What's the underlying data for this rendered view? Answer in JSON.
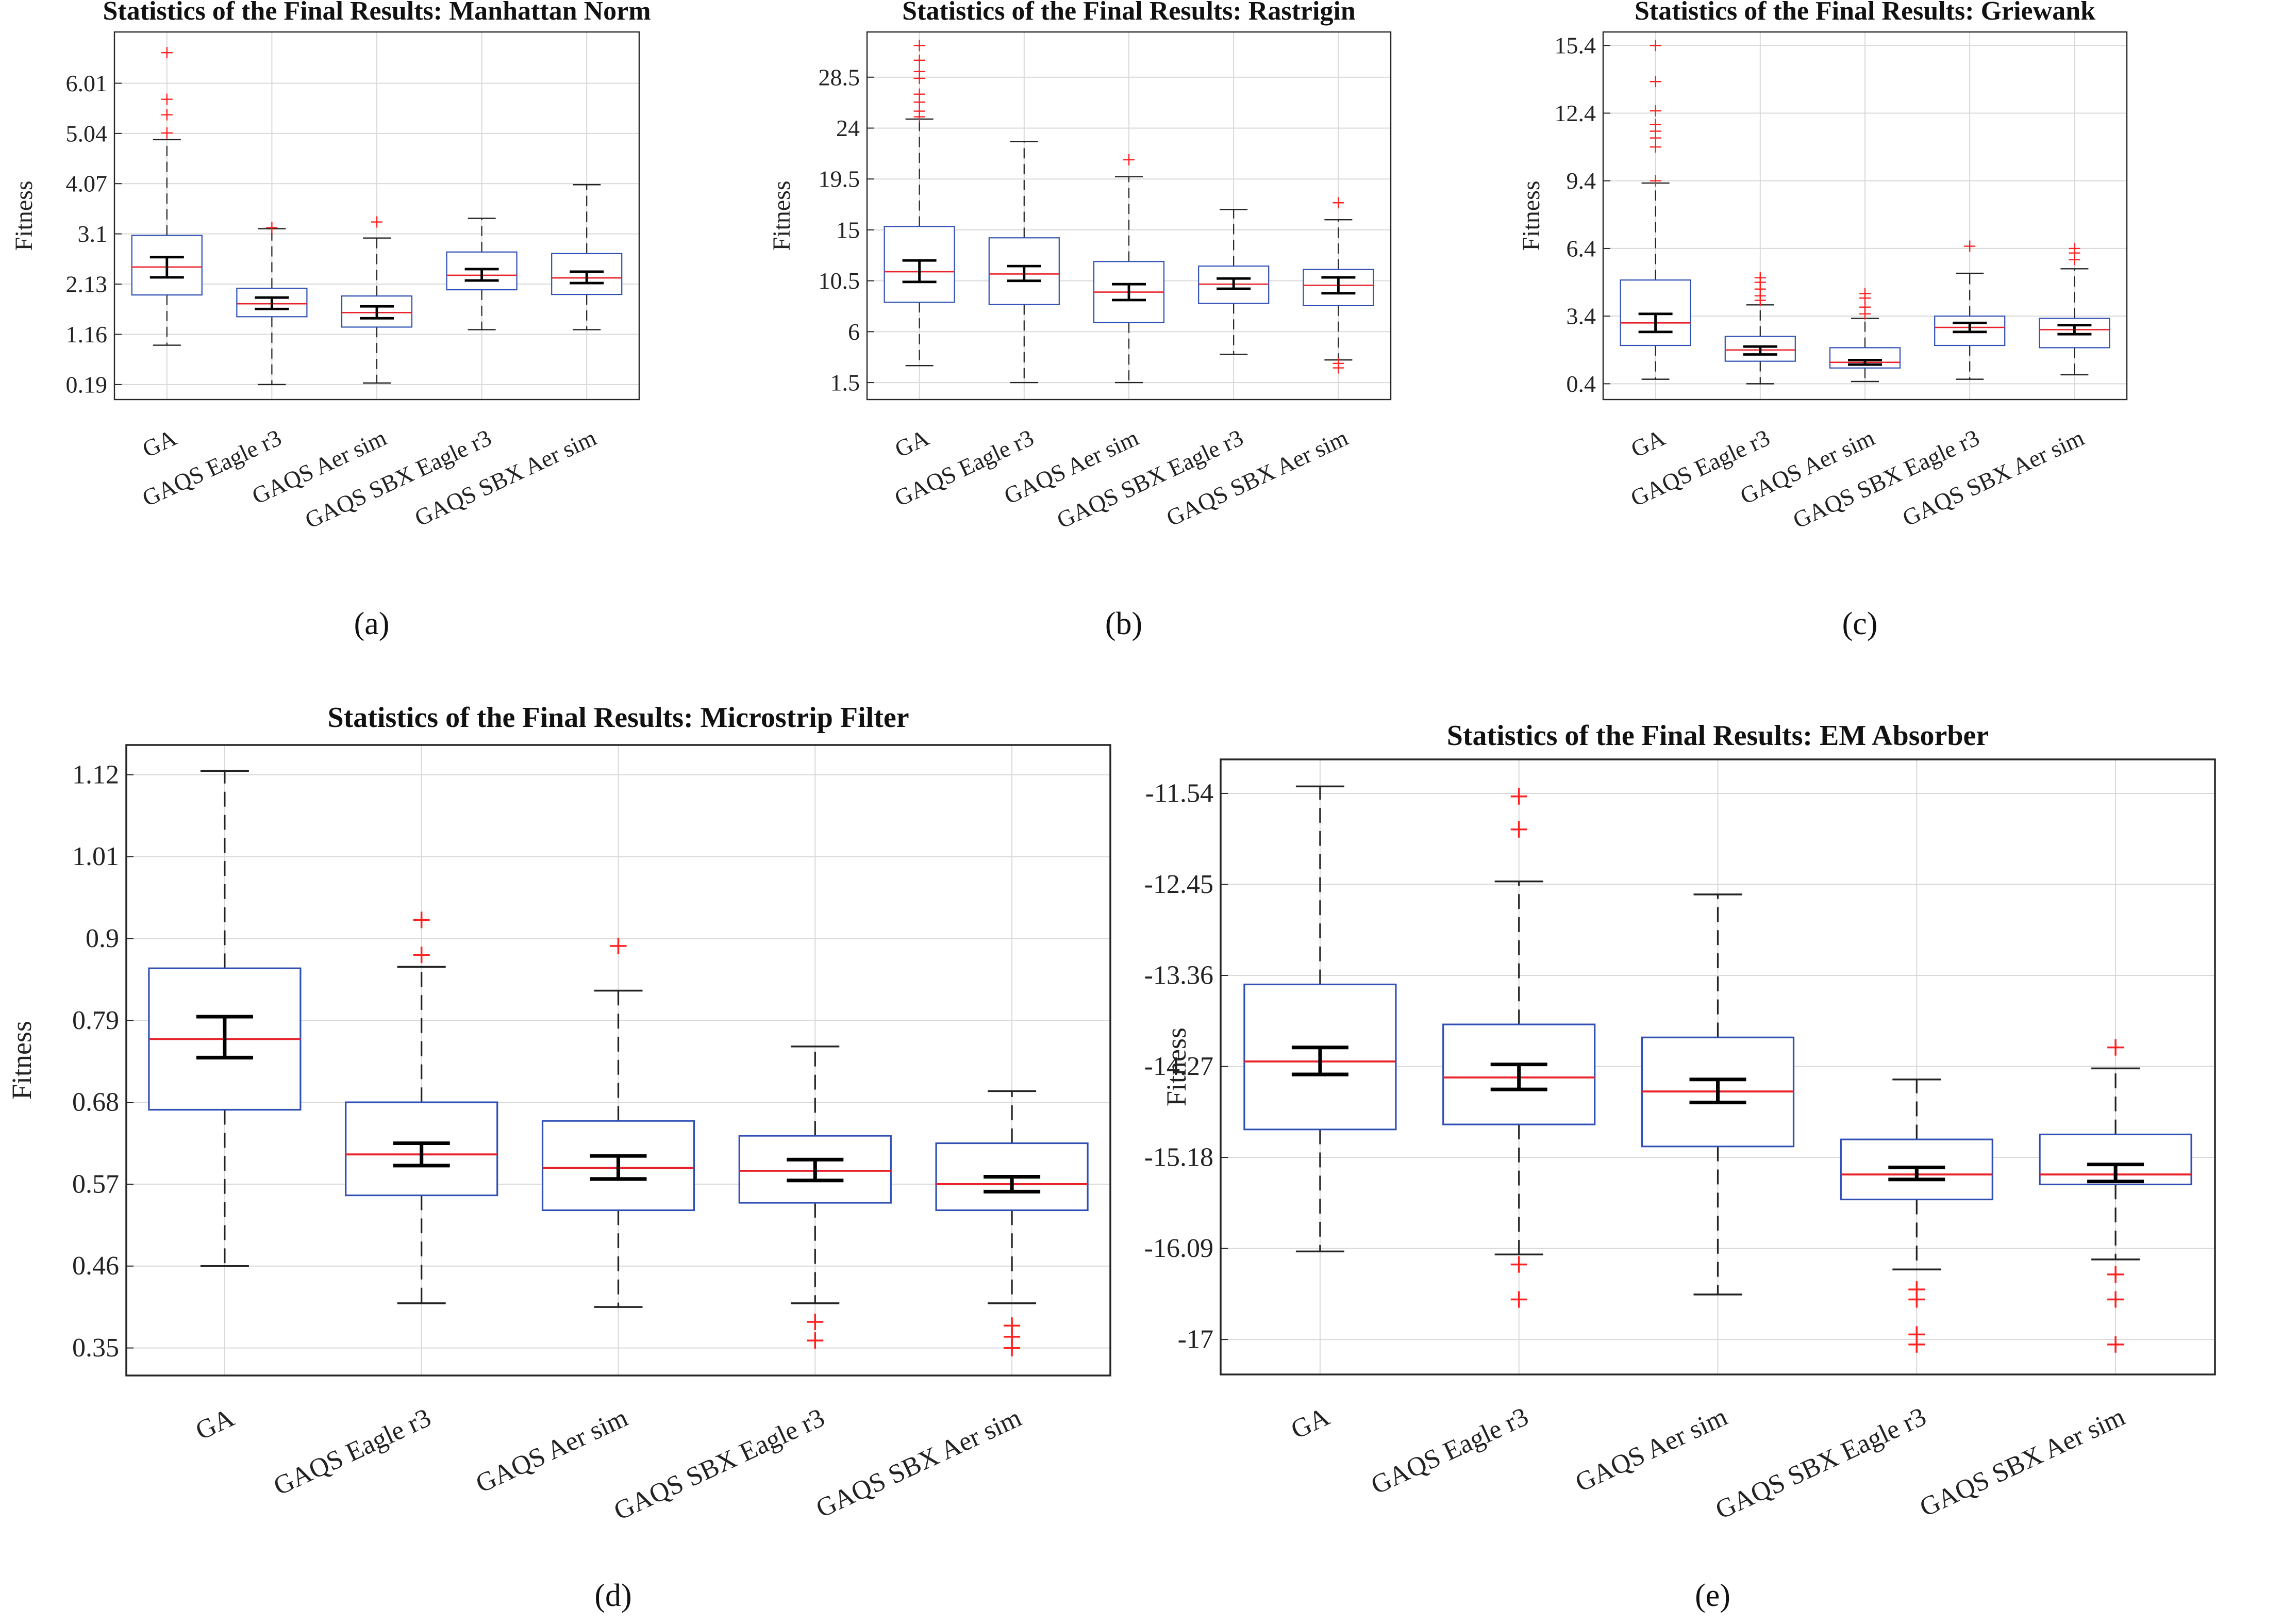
{
  "colors": {
    "box": "#2f4fb5",
    "median": "#e8222a",
    "outlier": "#ff2020",
    "whisker": "#222222",
    "ci": "#000000",
    "grid": "#d9d9d9",
    "axis": "#262626"
  },
  "chart_data": [
    {
      "type": "box",
      "caption": "(a)",
      "title": "Statistics of the Final Results: Manhattan Norm",
      "ylabel": "Fitness",
      "categories": [
        "GA",
        "GAQS Eagle r3",
        "GAQS Aer sim",
        "GAQS SBX Eagle r3",
        "GAQS SBX Aer sim"
      ],
      "yticks": [
        0.19,
        1.16,
        2.13,
        3.1,
        4.07,
        5.04,
        6.01
      ],
      "ytick_labels": [
        "0.19",
        "1.16",
        "2.13",
        "3.1",
        "4.07",
        "5.04",
        "6.01"
      ],
      "ylim": [
        -0.1,
        7.0
      ],
      "boxes": [
        {
          "whisker_low": 0.95,
          "q1": 1.92,
          "median": 2.46,
          "q3": 3.07,
          "whisker_high": 4.92,
          "ci_low": 2.26,
          "ci_high": 2.65,
          "outliers": [
            5.05,
            5.4,
            5.7,
            6.6
          ]
        },
        {
          "whisker_low": 0.19,
          "q1": 1.5,
          "median": 1.75,
          "q3": 2.05,
          "whisker_high": 3.2,
          "ci_low": 1.65,
          "ci_high": 1.87,
          "outliers": [
            3.22
          ]
        },
        {
          "whisker_low": 0.22,
          "q1": 1.3,
          "median": 1.58,
          "q3": 1.9,
          "whisker_high": 3.02,
          "ci_low": 1.47,
          "ci_high": 1.7,
          "outliers": [
            3.33
          ]
        },
        {
          "whisker_low": 1.25,
          "q1": 2.02,
          "median": 2.3,
          "q3": 2.75,
          "whisker_high": 3.4,
          "ci_low": 2.2,
          "ci_high": 2.42,
          "outliers": []
        },
        {
          "whisker_low": 1.25,
          "q1": 1.93,
          "median": 2.25,
          "q3": 2.72,
          "whisker_high": 4.05,
          "ci_low": 2.15,
          "ci_high": 2.37,
          "outliers": []
        }
      ]
    },
    {
      "type": "box",
      "caption": "(b)",
      "title": "Statistics of the Final Results: Rastrigin",
      "ylabel": "Fitness",
      "categories": [
        "GA",
        "GAQS Eagle r3",
        "GAQS Aer sim",
        "GAQS SBX Eagle r3",
        "GAQS SBX Aer sim"
      ],
      "yticks": [
        1.5,
        6,
        10.5,
        15,
        19.5,
        24,
        28.5
      ],
      "ytick_labels": [
        "1.5",
        "6",
        "10.5",
        "15",
        "19.5",
        "24",
        "28.5"
      ],
      "ylim": [
        0,
        32.5
      ],
      "boxes": [
        {
          "whisker_low": 3.0,
          "q1": 8.6,
          "median": 11.3,
          "q3": 15.3,
          "whisker_high": 24.8,
          "ci_low": 10.4,
          "ci_high": 12.3,
          "outliers": [
            25.0,
            25.5,
            26.3,
            27.0,
            28.4,
            29.0,
            30.0,
            31.3
          ]
        },
        {
          "whisker_low": 1.5,
          "q1": 8.4,
          "median": 11.1,
          "q3": 14.3,
          "whisker_high": 22.8,
          "ci_low": 10.5,
          "ci_high": 11.8,
          "outliers": []
        },
        {
          "whisker_low": 1.5,
          "q1": 6.8,
          "median": 9.5,
          "q3": 12.2,
          "whisker_high": 19.7,
          "ci_low": 8.8,
          "ci_high": 10.2,
          "outliers": [
            21.2
          ]
        },
        {
          "whisker_low": 4.0,
          "q1": 8.5,
          "median": 10.2,
          "q3": 11.8,
          "whisker_high": 16.8,
          "ci_low": 9.8,
          "ci_high": 10.7,
          "outliers": []
        },
        {
          "whisker_low": 3.5,
          "q1": 8.3,
          "median": 10.1,
          "q3": 11.5,
          "whisker_high": 15.9,
          "ci_low": 9.4,
          "ci_high": 10.8,
          "outliers": [
            2.8,
            3.2,
            17.4
          ]
        }
      ]
    },
    {
      "type": "box",
      "caption": "(c)",
      "title": "Statistics of the Final Results: Griewank",
      "ylabel": "Fitness",
      "categories": [
        "GA",
        "GAQS Eagle r3",
        "GAQS Aer sim",
        "GAQS SBX Eagle r3",
        "GAQS SBX Aer sim"
      ],
      "yticks": [
        0.4,
        3.4,
        6.4,
        9.4,
        12.4,
        15.4
      ],
      "ytick_labels": [
        "0.4",
        "3.4",
        "6.4",
        "9.4",
        "12.4",
        "15.4"
      ],
      "ylim": [
        -0.3,
        16.0
      ],
      "boxes": [
        {
          "whisker_low": 0.6,
          "q1": 2.1,
          "median": 3.1,
          "q3": 5.0,
          "whisker_high": 9.3,
          "ci_low": 2.7,
          "ci_high": 3.5,
          "outliers": [
            9.4,
            10.9,
            11.3,
            11.6,
            11.9,
            12.5,
            13.8,
            15.4
          ]
        },
        {
          "whisker_low": 0.4,
          "q1": 1.4,
          "median": 1.9,
          "q3": 2.5,
          "whisker_high": 3.9,
          "ci_low": 1.7,
          "ci_high": 2.05,
          "outliers": [
            4.1,
            4.3,
            4.6,
            4.9,
            5.1
          ]
        },
        {
          "whisker_low": 0.5,
          "q1": 1.1,
          "median": 1.35,
          "q3": 2.0,
          "whisker_high": 3.3,
          "ci_low": 1.25,
          "ci_high": 1.45,
          "outliers": [
            3.5,
            3.8,
            4.2,
            4.4
          ]
        },
        {
          "whisker_low": 0.6,
          "q1": 2.1,
          "median": 2.9,
          "q3": 3.4,
          "whisker_high": 5.3,
          "ci_low": 2.7,
          "ci_high": 3.1,
          "outliers": [
            6.5
          ]
        },
        {
          "whisker_low": 0.8,
          "q1": 2.0,
          "median": 2.8,
          "q3": 3.3,
          "whisker_high": 5.5,
          "ci_low": 2.6,
          "ci_high": 3.0,
          "outliers": [
            5.9,
            6.2,
            6.4
          ]
        }
      ]
    },
    {
      "type": "box",
      "caption": "(d)",
      "title": "Statistics of the Final Results: Microstrip Filter",
      "ylabel": "Fitness",
      "categories": [
        "GA",
        "GAQS Eagle r3",
        "GAQS Aer sim",
        "GAQS SBX Eagle r3",
        "GAQS SBX Aer sim"
      ],
      "yticks": [
        0.35,
        0.46,
        0.57,
        0.68,
        0.79,
        0.9,
        1.01,
        1.12
      ],
      "ytick_labels": [
        "0.35",
        "0.46",
        "0.57",
        "0.68",
        "0.79",
        "0.9",
        "1.01",
        "1.12"
      ],
      "ylim": [
        0.313,
        1.16
      ],
      "boxes": [
        {
          "whisker_low": 0.46,
          "q1": 0.67,
          "median": 0.765,
          "q3": 0.86,
          "whisker_high": 1.125,
          "ci_low": 0.74,
          "ci_high": 0.795,
          "outliers": []
        },
        {
          "whisker_low": 0.41,
          "q1": 0.555,
          "median": 0.61,
          "q3": 0.68,
          "whisker_high": 0.862,
          "ci_low": 0.595,
          "ci_high": 0.625,
          "outliers": [
            0.878,
            0.925
          ]
        },
        {
          "whisker_low": 0.405,
          "q1": 0.535,
          "median": 0.592,
          "q3": 0.655,
          "whisker_high": 0.83,
          "ci_low": 0.577,
          "ci_high": 0.608,
          "outliers": [
            0.89
          ]
        },
        {
          "whisker_low": 0.41,
          "q1": 0.545,
          "median": 0.588,
          "q3": 0.635,
          "whisker_high": 0.755,
          "ci_low": 0.575,
          "ci_high": 0.603,
          "outliers": [
            0.36,
            0.385
          ]
        },
        {
          "whisker_low": 0.41,
          "q1": 0.535,
          "median": 0.57,
          "q3": 0.625,
          "whisker_high": 0.695,
          "ci_low": 0.56,
          "ci_high": 0.58,
          "outliers": [
            0.35,
            0.365,
            0.38
          ]
        }
      ]
    },
    {
      "type": "box",
      "caption": "(e)",
      "title": "Statistics of the Final Results: EM Absorber",
      "ylabel": "Fitness",
      "categories": [
        "GA",
        "GAQS Eagle r3",
        "GAQS Aer sim",
        "GAQS SBX Eagle r3",
        "GAQS SBX Aer sim"
      ],
      "yticks": [
        -17,
        -16.09,
        -15.18,
        -14.27,
        -13.36,
        -12.45,
        -11.54
      ],
      "ytick_labels": [
        "-17",
        "-16.09",
        "-15.18",
        "-14.27",
        "-13.36",
        "-12.45",
        "-11.54"
      ],
      "ylim": [
        -17.35,
        -11.2
      ],
      "boxes": [
        {
          "whisker_low": -16.12,
          "q1": -14.9,
          "median": -14.22,
          "q3": -13.45,
          "whisker_high": -11.47,
          "ci_low": -14.35,
          "ci_high": -14.08,
          "outliers": []
        },
        {
          "whisker_low": -16.15,
          "q1": -14.85,
          "median": -14.38,
          "q3": -13.85,
          "whisker_high": -12.42,
          "ci_low": -14.5,
          "ci_high": -14.25,
          "outliers": [
            -16.25,
            -16.6,
            -11.9,
            -11.57
          ]
        },
        {
          "whisker_low": -16.55,
          "q1": -15.07,
          "median": -14.52,
          "q3": -13.98,
          "whisker_high": -12.55,
          "ci_low": -14.63,
          "ci_high": -14.4,
          "outliers": []
        },
        {
          "whisker_low": -16.3,
          "q1": -15.6,
          "median": -15.35,
          "q3": -15.0,
          "whisker_high": -14.4,
          "ci_low": -15.4,
          "ci_high": -15.28,
          "outliers": [
            -16.5,
            -16.6,
            -16.95,
            -17.05
          ]
        },
        {
          "whisker_low": -16.2,
          "q1": -15.45,
          "median": -15.35,
          "q3": -14.95,
          "whisker_high": -14.29,
          "ci_low": -15.42,
          "ci_high": -15.25,
          "outliers": [
            -16.35,
            -16.6,
            -17.05,
            -14.08
          ]
        }
      ]
    }
  ]
}
